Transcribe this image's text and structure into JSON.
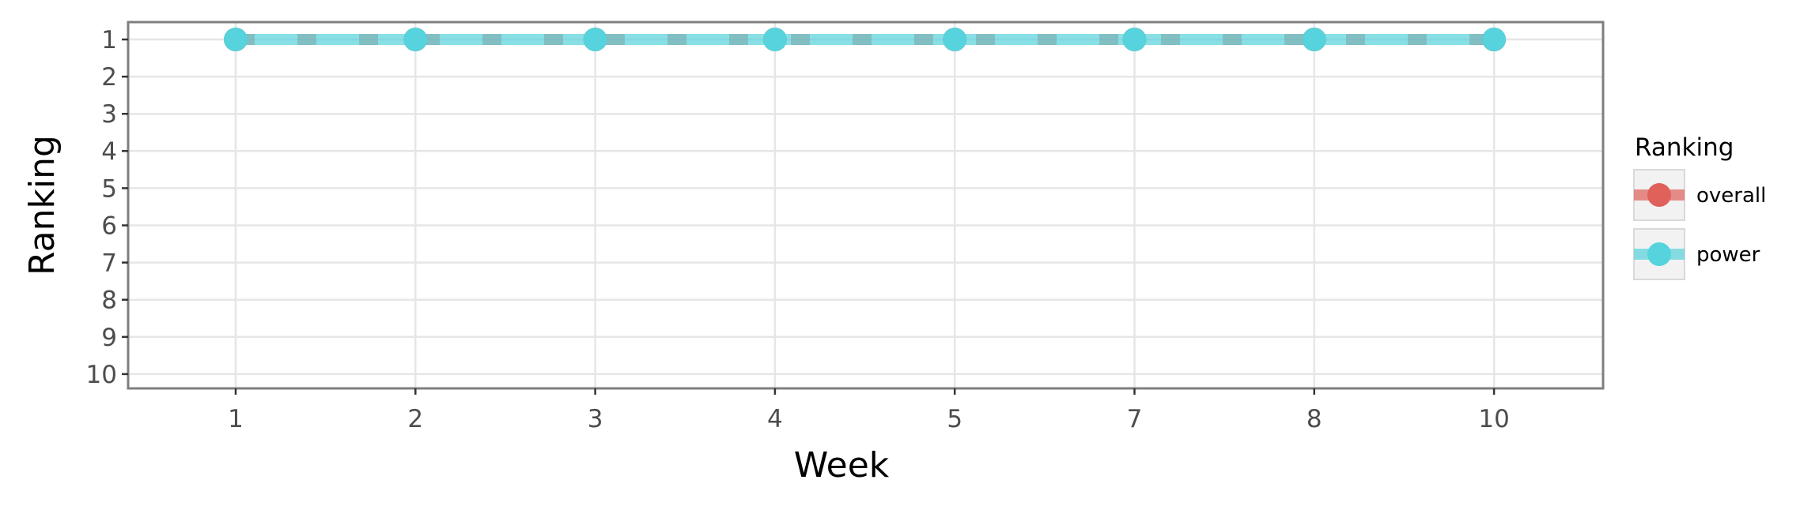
{
  "chart_data": {
    "type": "line",
    "title": "",
    "xlabel": "Week",
    "ylabel": "Ranking",
    "categories": [
      "1",
      "2",
      "3",
      "4",
      "5",
      "7",
      "8",
      "10"
    ],
    "y_ticks": [
      "1",
      "2",
      "3",
      "4",
      "5",
      "6",
      "7",
      "8",
      "9",
      "10"
    ],
    "ylim": [
      10,
      1
    ],
    "y_reversed": true,
    "grid": true,
    "legend": {
      "title": "Ranking",
      "position": "right"
    },
    "series": [
      {
        "name": "overall",
        "color": "#e0605a",
        "line_style": "dashed",
        "values": [
          1,
          1,
          1,
          1,
          1,
          1,
          1,
          1
        ]
      },
      {
        "name": "power",
        "color": "#56d3dc",
        "line_style": "solid",
        "values": [
          1,
          1,
          1,
          1,
          1,
          1,
          1,
          1
        ]
      }
    ]
  }
}
